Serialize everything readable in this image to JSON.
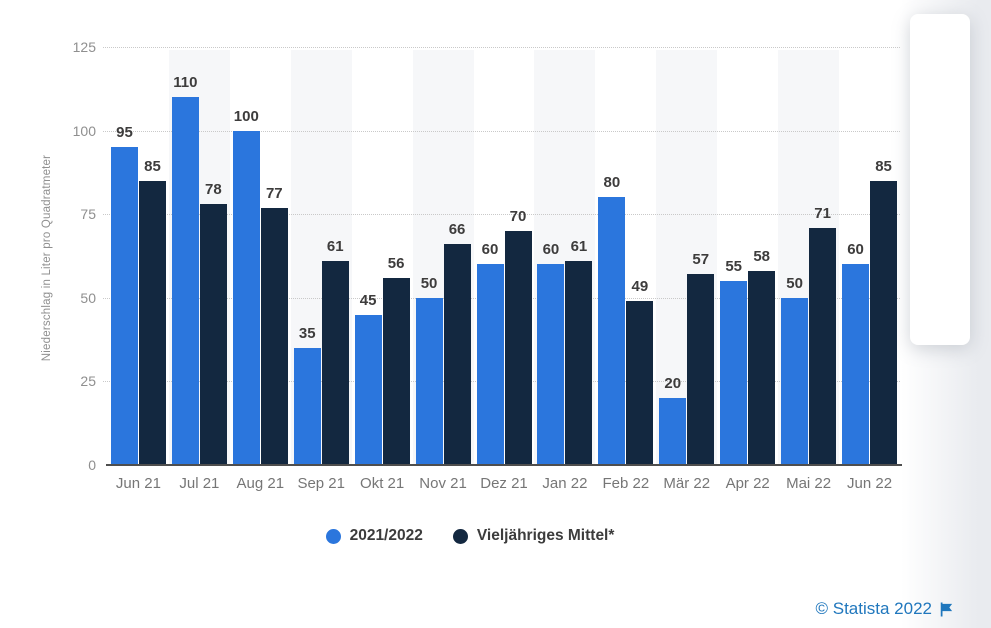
{
  "chart_data": {
    "type": "bar",
    "title": "",
    "categories": [
      "Jun 21",
      "Jul 21",
      "Aug 21",
      "Sep 21",
      "Okt 21",
      "Nov 21",
      "Dez 21",
      "Jan 22",
      "Feb 22",
      "Mär 22",
      "Apr 22",
      "Mai 22",
      "Jun 22"
    ],
    "series": [
      {
        "name": "2021/2022",
        "color": "#2b76dd",
        "values": [
          95,
          110,
          100,
          35,
          45,
          50,
          60,
          60,
          80,
          20,
          55,
          50,
          60
        ]
      },
      {
        "name": "Vieljähriges Mittel*",
        "color": "#132840",
        "values": [
          85,
          78,
          77,
          61,
          56,
          66,
          70,
          61,
          49,
          57,
          58,
          71,
          85
        ]
      }
    ],
    "xlabel": "",
    "ylabel": "Niederschlag in Liter pro Quadratmeter",
    "ylim": [
      0,
      125
    ],
    "yticks": [
      0,
      25,
      50,
      75,
      100,
      125
    ],
    "grid": "horizontal-dotted",
    "value_labels": true,
    "legend_position": "bottom-center",
    "plot_band_color": "#f6f7f9",
    "value_label_color": "#3d3c3c",
    "axis_text_color": "#8f8f8f",
    "xlabel_text_color": "#767676"
  },
  "footer": {
    "copyright": "© Statista 2022",
    "color": "#2077bd",
    "flag_icon": "statista-flag-icon"
  }
}
